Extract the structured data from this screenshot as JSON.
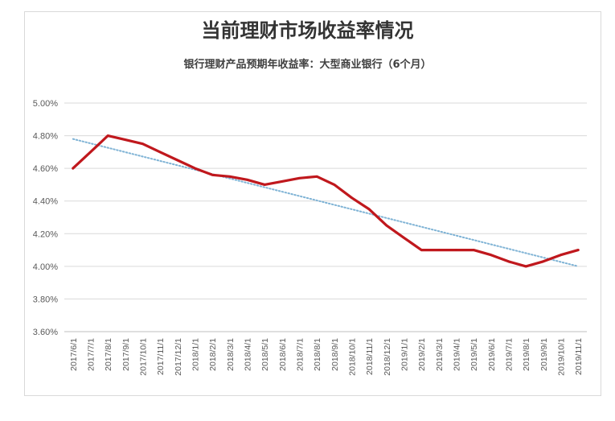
{
  "chart_data": {
    "type": "line",
    "title": "当前理财市场收益率情况",
    "subtitle": "银行理财产品预期年收益率：大型商业银行（6个月）",
    "xlabel": "",
    "ylabel": "",
    "categories": [
      "2017/6/1",
      "2017/7/1",
      "2017/8/1",
      "2017/9/1",
      "2017/10/1",
      "2017/11/1",
      "2017/12/1",
      "2018/1/1",
      "2018/2/1",
      "2018/3/1",
      "2018/4/1",
      "2018/5/1",
      "2018/6/1",
      "2018/7/1",
      "2018/8/1",
      "2018/9/1",
      "2018/10/1",
      "2018/11/1",
      "2018/12/1",
      "2019/1/1",
      "2019/2/1",
      "2019/3/1",
      "2019/4/1",
      "2019/5/1",
      "2019/6/1",
      "2019/7/1",
      "2019/8/1",
      "2019/9/1",
      "2019/10/1",
      "2019/11/1"
    ],
    "series": [
      {
        "values": [
          4.6,
          4.7,
          4.8,
          4.775,
          4.75,
          4.7,
          4.65,
          4.6,
          4.56,
          4.55,
          4.53,
          4.5,
          4.52,
          4.54,
          4.55,
          4.5,
          4.42,
          4.35,
          4.25,
          4.175,
          4.1,
          4.1,
          4.1,
          4.1,
          4.07,
          4.03,
          4.0,
          4.03,
          4.07,
          4.1
        ],
        "color": "#c0181d"
      }
    ],
    "trendline": {
      "start": 4.78,
      "end": 4.0,
      "color": "#7fb3d5",
      "style": "dotted"
    },
    "ylim": [
      3.6,
      5.0
    ],
    "yticks": [
      "3.60%",
      "3.80%",
      "4.00%",
      "4.20%",
      "4.40%",
      "4.60%",
      "4.80%",
      "5.00%"
    ],
    "ytick_values": [
      3.6,
      3.8,
      4.0,
      4.2,
      4.4,
      4.6,
      4.8,
      5.0
    ],
    "grid": true,
    "legend": "none"
  }
}
